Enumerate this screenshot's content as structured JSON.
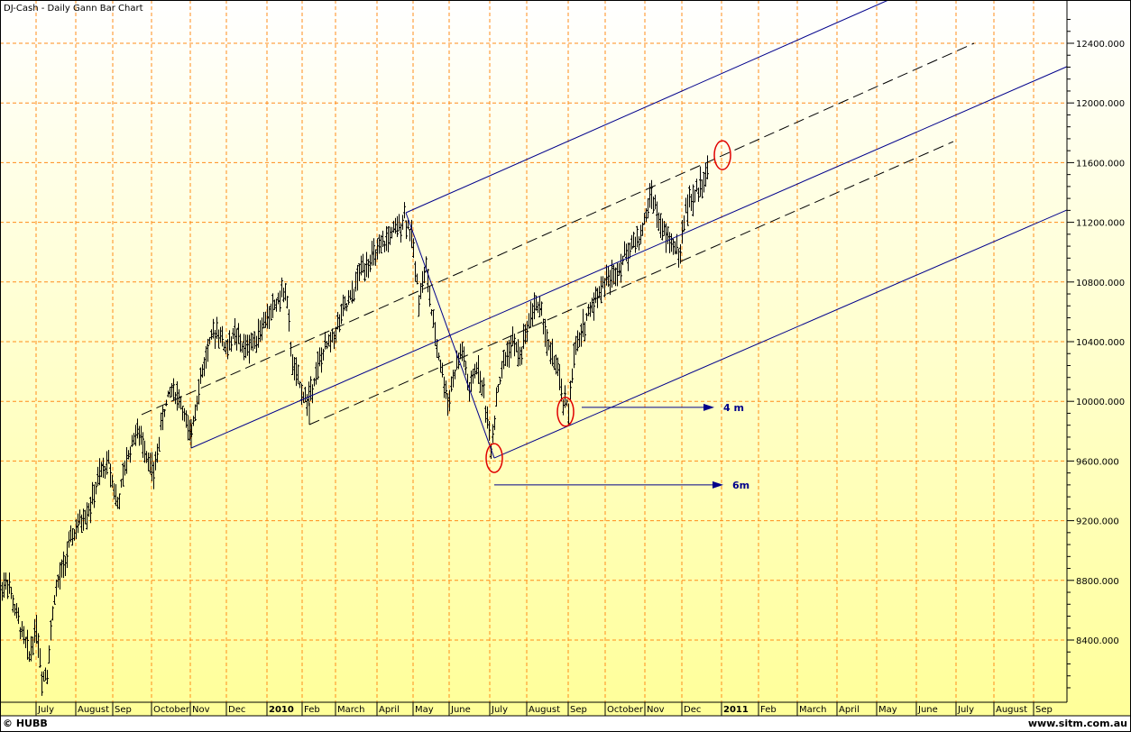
{
  "title": "DJ-Cash - Daily Gann Bar Chart",
  "footer": {
    "copyright": "© HUBB",
    "website": "www.sitm.com.au"
  },
  "colors": {
    "grid": "#ff8c1a",
    "bars": "#000000",
    "trend_blue": "#00008b",
    "circle": "#e00000",
    "bg_top": "#ffffff",
    "bg_bottom": "#ffff99"
  },
  "chart_data": {
    "type": "bar",
    "title": "DJ-Cash - Daily Gann Bar Chart",
    "xlabel": "",
    "ylabel": "",
    "x_unit": "trading-day index",
    "ylim": [
      7980,
      12690
    ],
    "grid": true,
    "y_ticks": [
      {
        "value": 12400,
        "label": "12400.000"
      },
      {
        "value": 12000,
        "label": "12000.000"
      },
      {
        "value": 11600,
        "label": "11600.000"
      },
      {
        "value": 11200,
        "label": "11200.000"
      },
      {
        "value": 10800,
        "label": "10800.000"
      },
      {
        "value": 10400,
        "label": "10400.000"
      },
      {
        "value": 10000,
        "label": "10000.000"
      },
      {
        "value": 9600,
        "label": "9600.000"
      },
      {
        "value": 9200,
        "label": "9200.000"
      },
      {
        "value": 8800,
        "label": "8800.000"
      },
      {
        "value": 8400,
        "label": "8400.000"
      }
    ],
    "x_ticks": [
      {
        "x": 20,
        "label": "July"
      },
      {
        "x": 42,
        "label": "August"
      },
      {
        "x": 62.5,
        "label": "Sep"
      },
      {
        "x": 84,
        "label": "October"
      },
      {
        "x": 105.5,
        "label": "Nov"
      },
      {
        "x": 125.5,
        "label": "Dec"
      },
      {
        "x": 148,
        "label": "2010",
        "bold": true
      },
      {
        "x": 167.5,
        "label": "Feb"
      },
      {
        "x": 186,
        "label": "March"
      },
      {
        "x": 209,
        "label": "April"
      },
      {
        "x": 229,
        "label": "May"
      },
      {
        "x": 249,
        "label": "June"
      },
      {
        "x": 271.5,
        "label": "July"
      },
      {
        "x": 292,
        "label": "August"
      },
      {
        "x": 315,
        "label": "Sep"
      },
      {
        "x": 335.5,
        "label": "October"
      },
      {
        "x": 357.5,
        "label": "Nov"
      },
      {
        "x": 378,
        "label": "Dec"
      },
      {
        "x": 400,
        "label": "2011",
        "bold": true
      },
      {
        "x": 420.5,
        "label": "Feb"
      },
      {
        "x": 442,
        "label": "March"
      },
      {
        "x": 464,
        "label": "April"
      },
      {
        "x": 486,
        "label": "May"
      },
      {
        "x": 508,
        "label": "June"
      },
      {
        "x": 530,
        "label": "July"
      },
      {
        "x": 551,
        "label": "August"
      },
      {
        "x": 573,
        "label": "Sep"
      }
    ],
    "price_path": [
      [
        0,
        8750
      ],
      [
        4,
        8800
      ],
      [
        8,
        8600
      ],
      [
        12,
        8450
      ],
      [
        16,
        8300
      ],
      [
        20,
        8500
      ],
      [
        23,
        8150
      ],
      [
        26,
        8200
      ],
      [
        30,
        8700
      ],
      [
        35,
        8900
      ],
      [
        40,
        9100
      ],
      [
        45,
        9200
      ],
      [
        50,
        9300
      ],
      [
        55,
        9500
      ],
      [
        60,
        9600
      ],
      [
        65,
        9300
      ],
      [
        70,
        9600
      ],
      [
        75,
        9800
      ],
      [
        80,
        9700
      ],
      [
        85,
        9500
      ],
      [
        90,
        9900
      ],
      [
        95,
        10100
      ],
      [
        100,
        10000
      ],
      [
        105,
        9750
      ],
      [
        110,
        10100
      ],
      [
        115,
        10350
      ],
      [
        120,
        10500
      ],
      [
        125,
        10350
      ],
      [
        130,
        10450
      ],
      [
        135,
        10350
      ],
      [
        140,
        10400
      ],
      [
        145,
        10500
      ],
      [
        150,
        10600
      ],
      [
        155,
        10700
      ],
      [
        158,
        10750
      ],
      [
        162,
        10250
      ],
      [
        166,
        10100
      ],
      [
        170,
        10000
      ],
      [
        175,
        10200
      ],
      [
        180,
        10350
      ],
      [
        185,
        10450
      ],
      [
        190,
        10600
      ],
      [
        195,
        10700
      ],
      [
        200,
        10900
      ],
      [
        205,
        10950
      ],
      [
        210,
        11000
      ],
      [
        215,
        11100
      ],
      [
        220,
        11150
      ],
      [
        224,
        11250
      ],
      [
        228,
        11100
      ],
      [
        232,
        10700
      ],
      [
        236,
        10900
      ],
      [
        240,
        10500
      ],
      [
        244,
        10250
      ],
      [
        248,
        10000
      ],
      [
        252,
        10200
      ],
      [
        256,
        10350
      ],
      [
        260,
        10050
      ],
      [
        264,
        10250
      ],
      [
        268,
        10050
      ],
      [
        272,
        9700
      ],
      [
        276,
        10100
      ],
      [
        280,
        10300
      ],
      [
        284,
        10400
      ],
      [
        288,
        10300
      ],
      [
        292,
        10500
      ],
      [
        296,
        10650
      ],
      [
        300,
        10600
      ],
      [
        304,
        10350
      ],
      [
        308,
        10250
      ],
      [
        312,
        10000
      ],
      [
        315,
        9950
      ],
      [
        318,
        10300
      ],
      [
        322,
        10450
      ],
      [
        326,
        10600
      ],
      [
        330,
        10700
      ],
      [
        335,
        10800
      ],
      [
        340,
        10850
      ],
      [
        345,
        10950
      ],
      [
        350,
        11050
      ],
      [
        355,
        11100
      ],
      [
        358,
        11250
      ],
      [
        361,
        11400
      ],
      [
        365,
        11200
      ],
      [
        369,
        11100
      ],
      [
        373,
        11050
      ],
      [
        377,
        11000
      ],
      [
        380,
        11300
      ],
      [
        384,
        11350
      ],
      [
        388,
        11450
      ],
      [
        392,
        11550
      ]
    ],
    "annotations": {
      "blue_lines": [
        {
          "from": [
            225,
            11264
          ],
          "to": [
            492.5,
            12690
          ]
        },
        {
          "from": [
            106,
            9687
          ],
          "to": [
            592.5,
            12249
          ]
        },
        {
          "from": [
            274,
            9620
          ],
          "to": [
            592.5,
            11288
          ]
        },
        {
          "from": [
            225,
            11264
          ],
          "to": [
            274,
            9620
          ]
        }
      ],
      "dashed_lines": [
        {
          "from": [
            78.5,
            9911
          ],
          "to": [
            540,
            12400
          ]
        },
        {
          "from": [
            171.5,
            9844
          ],
          "to": [
            528.5,
            11741
          ]
        }
      ],
      "pivot_ticks": [
        {
          "from": [
            78.5,
            9911
          ],
          "to": [
            78.5,
            9911
          ]
        },
        {
          "from": [
            171.5,
            9990
          ],
          "to": [
            171.5,
            9844
          ]
        },
        {
          "from": [
            106,
            9880
          ],
          "to": [
            106,
            9687
          ]
        }
      ],
      "arrows": [
        {
          "from": [
            322.5,
            9960
          ],
          "to": [
            396,
            9960
          ],
          "label": "4 m"
        },
        {
          "from": [
            274,
            9440
          ],
          "to": [
            401,
            9440
          ],
          "label": "6m"
        }
      ],
      "circles": [
        {
          "at": [
            400.5,
            11650
          ]
        },
        {
          "at": [
            313.5,
            9930
          ]
        },
        {
          "at": [
            274,
            9620
          ]
        }
      ]
    }
  }
}
